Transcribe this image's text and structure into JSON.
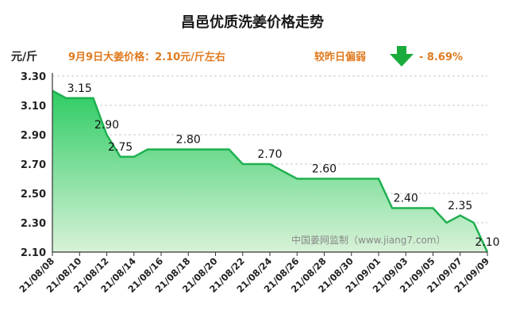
{
  "title": "昌邑优质洗姜价格走势",
  "unit_label": "元/斤",
  "price_note": "9月9日大姜价格：2.10元/斤左右",
  "compare": {
    "label": "较昨日偏弱",
    "change": "- 8.69%",
    "arrow_icon": "down-arrow-icon"
  },
  "watermark": "中国姜网监制（www.jiang7.com）",
  "colors": {
    "line": "#1fb050",
    "fill_top": "#2ecc64",
    "fill_bottom": "#d8f2d8",
    "accent": "#e07a1f",
    "arrow": "#1aab3c"
  },
  "chart_data": {
    "type": "area",
    "x": [
      "21/08/08",
      "21/08/09",
      "21/08/10",
      "21/08/11",
      "21/08/12",
      "21/08/13",
      "21/08/14",
      "21/08/15",
      "21/08/16",
      "21/08/17",
      "21/08/18",
      "21/08/19",
      "21/08/20",
      "21/08/21",
      "21/08/22",
      "21/08/23",
      "21/08/24",
      "21/08/25",
      "21/08/26",
      "21/08/27",
      "21/08/28",
      "21/08/29",
      "21/08/30",
      "21/08/31",
      "21/09/01",
      "21/09/02",
      "21/09/03",
      "21/09/04",
      "21/09/05",
      "21/09/06",
      "21/09/07",
      "21/09/08",
      "21/09/09"
    ],
    "values": [
      3.2,
      3.15,
      3.15,
      3.15,
      2.9,
      2.75,
      2.75,
      2.8,
      2.8,
      2.8,
      2.8,
      2.8,
      2.8,
      2.8,
      2.7,
      2.7,
      2.7,
      2.65,
      2.6,
      2.6,
      2.6,
      2.6,
      2.6,
      2.6,
      2.6,
      2.4,
      2.4,
      2.4,
      2.4,
      2.3,
      2.35,
      2.3,
      2.1
    ],
    "xticks": [
      "21/08/08",
      "21/08/10",
      "21/08/12",
      "21/08/14",
      "21/08/16",
      "21/08/18",
      "21/08/20",
      "21/08/22",
      "21/08/24",
      "21/08/26",
      "21/08/28",
      "21/08/30",
      "21/09/01",
      "21/09/03",
      "21/09/05",
      "21/09/07",
      "21/09/09"
    ],
    "yticks": [
      "2.10",
      "2.30",
      "2.50",
      "2.70",
      "2.90",
      "3.10",
      "3.30"
    ],
    "ylim": [
      2.1,
      3.3
    ],
    "grid": true,
    "annotations": [
      {
        "index": 2,
        "text": "3.15"
      },
      {
        "index": 4,
        "text": "2.90"
      },
      {
        "index": 5,
        "text": "2.75"
      },
      {
        "index": 10,
        "text": "2.80"
      },
      {
        "index": 16,
        "text": "2.70"
      },
      {
        "index": 20,
        "text": "2.60"
      },
      {
        "index": 26,
        "text": "2.40"
      },
      {
        "index": 30,
        "text": "2.35"
      },
      {
        "index": 32,
        "text": "2.10"
      }
    ]
  }
}
